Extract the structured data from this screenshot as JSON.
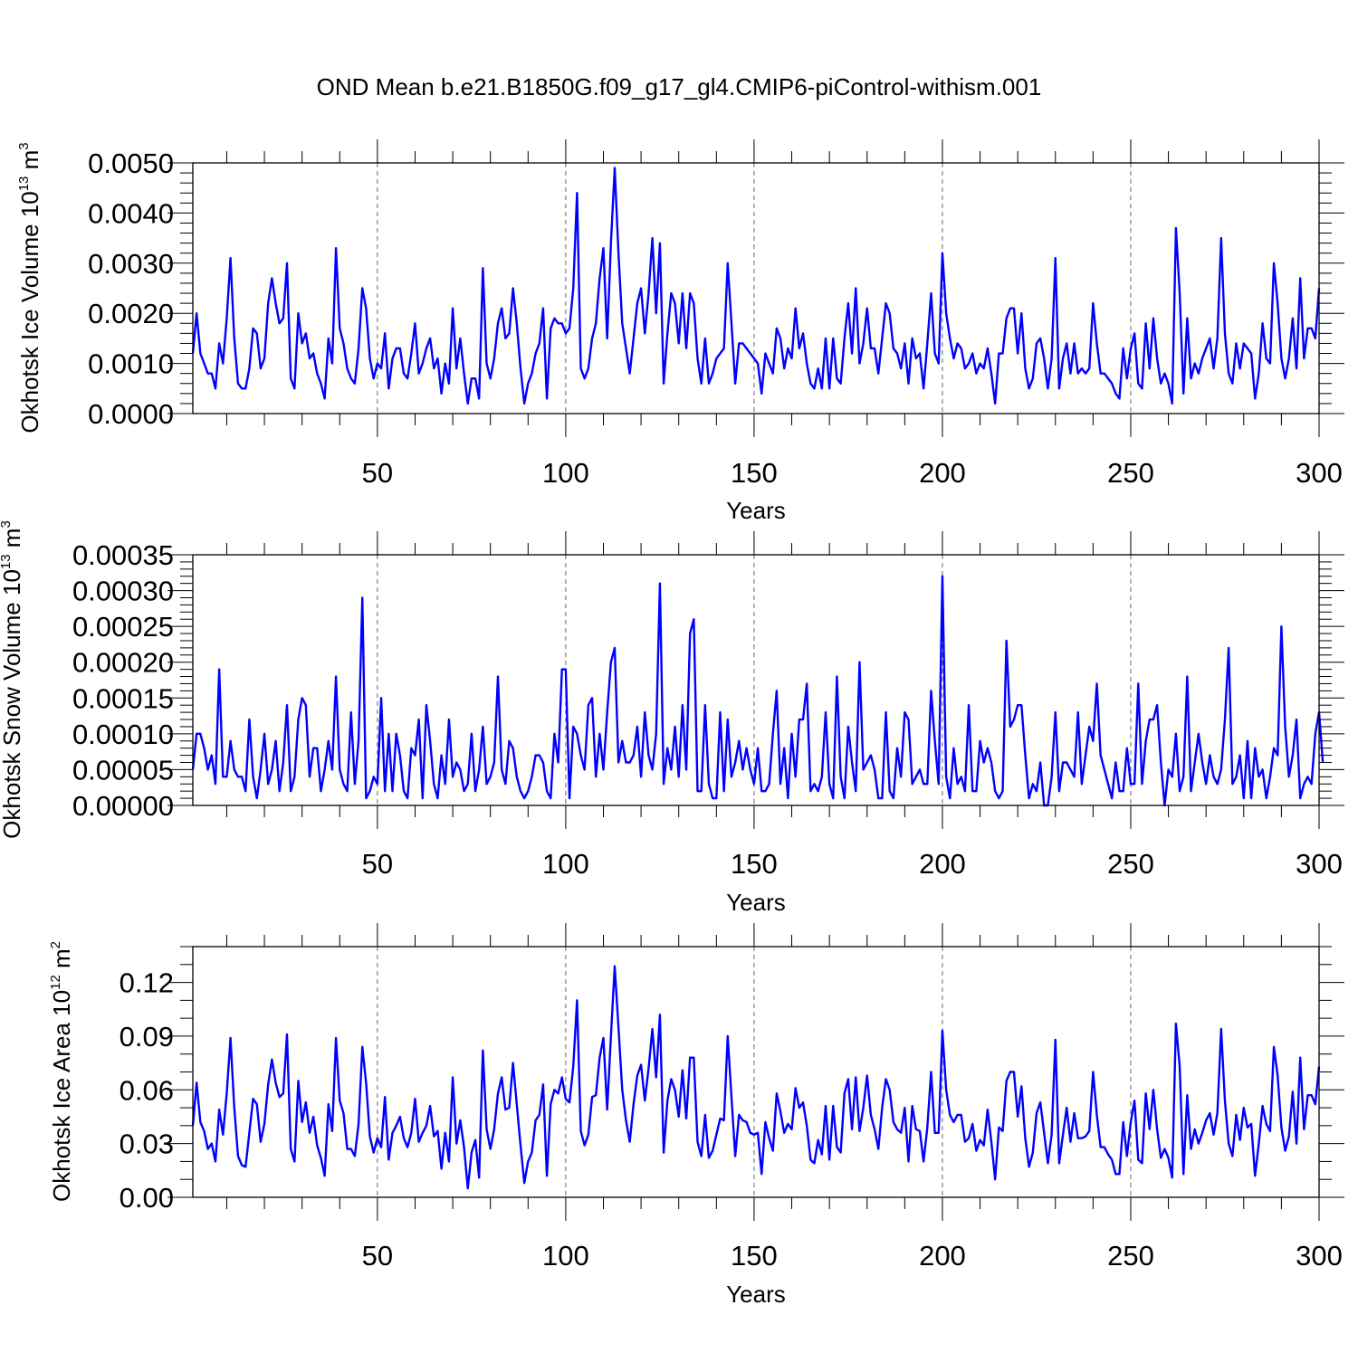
{
  "title": "OND Mean b.e21.B1850G.f09_g17_gl4.CMIP6-piControl-withism.001",
  "colors": {
    "series": "#0000ff",
    "axis": "#000000",
    "grid": "#666666"
  },
  "chart_data": [
    {
      "type": "line",
      "name": "ice-volume",
      "ylabel": "Okhotsk Ice Volume 10",
      "yexp": "13",
      "yunit": " m",
      "yunitexp": "3",
      "xlabel": "Years",
      "xlim": [
        1,
        300
      ],
      "ylim": [
        0,
        0.005
      ],
      "xticks": [
        50,
        100,
        150,
        200,
        250,
        300
      ],
      "xtick_labels": [
        "50",
        "100",
        "150",
        "200",
        "250",
        "300"
      ],
      "yticks": [
        0,
        0.001,
        0.002,
        0.003,
        0.004,
        0.005
      ],
      "ytick_labels": [
        "0.0000",
        "0.0010",
        "0.0020",
        "0.0030",
        "0.0040",
        "0.0050"
      ],
      "yminor": 0.0002,
      "gridlines_x": [
        50,
        100,
        150,
        200,
        250
      ],
      "x_start": 1,
      "values": [
        0.0012,
        0.002,
        0.0012,
        0.001,
        0.0008,
        0.0008,
        0.0005,
        0.0014,
        0.001,
        0.0019,
        0.0031,
        0.0015,
        0.0006,
        0.0005,
        0.0005,
        0.0009,
        0.0017,
        0.0016,
        0.0009,
        0.0011,
        0.0022,
        0.0027,
        0.0022,
        0.0018,
        0.0019,
        0.003,
        0.0007,
        0.0005,
        0.002,
        0.0014,
        0.0016,
        0.0011,
        0.0012,
        0.0008,
        0.0006,
        0.0003,
        0.0015,
        0.001,
        0.0033,
        0.0017,
        0.0014,
        0.0009,
        0.0007,
        0.0006,
        0.0013,
        0.0025,
        0.0021,
        0.0011,
        0.0007,
        0.001,
        0.0009,
        0.0016,
        0.0005,
        0.0011,
        0.0013,
        0.0013,
        0.0008,
        0.0007,
        0.0012,
        0.0018,
        0.0008,
        0.001,
        0.0013,
        0.0015,
        0.0009,
        0.0011,
        0.0004,
        0.001,
        0.0006,
        0.0021,
        0.0009,
        0.0015,
        0.0008,
        0.0002,
        0.0007,
        0.0007,
        0.0003,
        0.0029,
        0.001,
        0.0007,
        0.0011,
        0.0018,
        0.0021,
        0.0015,
        0.0016,
        0.0025,
        0.0018,
        0.0009,
        0.0002,
        0.0006,
        0.0008,
        0.0012,
        0.0014,
        0.0021,
        0.0003,
        0.0017,
        0.0019,
        0.0018,
        0.0018,
        0.0016,
        0.0017,
        0.0025,
        0.0044,
        0.0009,
        0.0007,
        0.0009,
        0.0015,
        0.0018,
        0.0027,
        0.0033,
        0.0015,
        0.0034,
        0.0049,
        0.0032,
        0.0018,
        0.0013,
        0.0008,
        0.0015,
        0.0022,
        0.0025,
        0.0016,
        0.0024,
        0.0035,
        0.002,
        0.0034,
        0.0006,
        0.0016,
        0.0024,
        0.0022,
        0.0014,
        0.0024,
        0.0013,
        0.0024,
        0.0022,
        0.0011,
        0.0006,
        0.0015,
        0.0006,
        0.0008,
        0.0011,
        0.0012,
        0.0013,
        0.003,
        0.0018,
        0.0006,
        0.0014,
        0.0014,
        0.0013,
        0.0012,
        0.0011,
        0.001,
        0.0004,
        0.0012,
        0.001,
        0.0008,
        0.0017,
        0.0015,
        0.0009,
        0.0013,
        0.0011,
        0.0021,
        0.0013,
        0.0016,
        0.001,
        0.0006,
        0.0005,
        0.0009,
        0.0005,
        0.0015,
        0.0005,
        0.0015,
        0.0007,
        0.0006,
        0.0015,
        0.0022,
        0.0012,
        0.0025,
        0.001,
        0.0014,
        0.0021,
        0.0013,
        0.0013,
        0.0008,
        0.0015,
        0.0022,
        0.002,
        0.0013,
        0.0012,
        0.0009,
        0.0014,
        0.0006,
        0.0015,
        0.0011,
        0.0012,
        0.0005,
        0.0014,
        0.0024,
        0.0012,
        0.001,
        0.0032,
        0.002,
        0.0015,
        0.0011,
        0.0014,
        0.0013,
        0.0009,
        0.001,
        0.0012,
        0.0008,
        0.001,
        0.0009,
        0.0013,
        0.0008,
        0.0002,
        0.0012,
        0.0012,
        0.0019,
        0.0021,
        0.0021,
        0.0012,
        0.002,
        0.0009,
        0.0005,
        0.0007,
        0.0014,
        0.0015,
        0.0011,
        0.0005,
        0.0011,
        0.0031,
        0.0005,
        0.0011,
        0.0014,
        0.0008,
        0.0014,
        0.0008,
        0.0009,
        0.0008,
        0.0009,
        0.0022,
        0.0014,
        0.0008,
        0.0008,
        0.0007,
        0.0006,
        0.0004,
        0.0003,
        0.0013,
        0.0007,
        0.0013,
        0.0016,
        0.0006,
        0.0005,
        0.0018,
        0.0009,
        0.0019,
        0.0011,
        0.0006,
        0.0008,
        0.0006,
        0.0002,
        0.0037,
        0.0024,
        0.0004,
        0.0019,
        0.0007,
        0.001,
        0.0008,
        0.0011,
        0.0013,
        0.0015,
        0.0009,
        0.0015,
        0.0035,
        0.0016,
        0.0008,
        0.0006,
        0.0014,
        0.0009,
        0.0014,
        0.0013,
        0.0012,
        0.0003,
        0.0008,
        0.0018,
        0.0011,
        0.001,
        0.003,
        0.0022,
        0.0011,
        0.0007,
        0.0011,
        0.0019,
        0.0009,
        0.0027,
        0.0011,
        0.0017,
        0.0017,
        0.0015,
        0.0025
      ]
    },
    {
      "type": "line",
      "name": "snow-volume",
      "ylabel": "Okhotsk Snow Volume 10",
      "yexp": "13",
      "yunit": " m",
      "yunitexp": "3",
      "xlabel": "Years",
      "xlim": [
        1,
        300
      ],
      "ylim": [
        0,
        0.00035
      ],
      "xticks": [
        50,
        100,
        150,
        200,
        250,
        300
      ],
      "xtick_labels": [
        "50",
        "100",
        "150",
        "200",
        "250",
        "300"
      ],
      "yticks": [
        0,
        5e-05,
        0.0001,
        0.00015,
        0.0002,
        0.00025,
        0.0003,
        0.00035
      ],
      "ytick_labels": [
        "0.00000",
        "0.00005",
        "0.00010",
        "0.00015",
        "0.00020",
        "0.00025",
        "0.00030",
        "0.00035"
      ],
      "yminor": 1e-05,
      "gridlines_x": [
        50,
        100,
        150,
        200,
        250
      ],
      "x_start": 1,
      "values": [
        5e-05,
        0.0001,
        0.0001,
        8e-05,
        5e-05,
        7e-05,
        3e-05,
        0.00019,
        4e-05,
        4e-05,
        9e-05,
        5e-05,
        4e-05,
        4e-05,
        2e-05,
        0.00012,
        4e-05,
        1e-05,
        5e-05,
        0.0001,
        3e-05,
        5e-05,
        9e-05,
        2e-05,
        6e-05,
        0.00014,
        2e-05,
        4e-05,
        0.00012,
        0.00015,
        0.00014,
        4e-05,
        8e-05,
        8e-05,
        2e-05,
        5e-05,
        9e-05,
        5e-05,
        0.00018,
        5e-05,
        3e-05,
        2e-05,
        0.00013,
        3e-05,
        9e-05,
        0.00029,
        1e-05,
        2e-05,
        4e-05,
        3e-05,
        0.00015,
        2e-05,
        0.0001,
        2e-05,
        0.0001,
        7e-05,
        2e-05,
        1e-05,
        8e-05,
        7e-05,
        0.00012,
        1e-05,
        0.00014,
        9e-05,
        3e-05,
        1e-05,
        7e-05,
        3e-05,
        0.00012,
        4e-05,
        6e-05,
        5e-05,
        2e-05,
        3e-05,
        0.0001,
        2e-05,
        5e-05,
        0.00011,
        3e-05,
        4e-05,
        6e-05,
        0.00018,
        5e-05,
        3e-05,
        9e-05,
        8e-05,
        4e-05,
        2e-05,
        1e-05,
        2e-05,
        4e-05,
        7e-05,
        7e-05,
        6e-05,
        2e-05,
        1e-05,
        0.0001,
        6e-05,
        0.00019,
        0.00019,
        1e-05,
        0.00011,
        0.0001,
        7e-05,
        5e-05,
        0.00014,
        0.00015,
        4e-05,
        0.0001,
        5e-05,
        0.00013,
        0.0002,
        0.00022,
        6e-05,
        9e-05,
        6e-05,
        6e-05,
        7e-05,
        0.00011,
        4e-05,
        0.00013,
        7e-05,
        5e-05,
        0.0001,
        0.00031,
        3e-05,
        8e-05,
        5e-05,
        0.00011,
        4e-05,
        0.00014,
        5e-05,
        0.00024,
        0.00026,
        2e-05,
        2e-05,
        0.00014,
        3e-05,
        1e-05,
        1e-05,
        0.00013,
        2e-05,
        0.00012,
        4e-05,
        6e-05,
        9e-05,
        5e-05,
        8e-05,
        5e-05,
        3e-05,
        8e-05,
        2e-05,
        2e-05,
        3e-05,
        0.0001,
        0.00016,
        3e-05,
        8e-05,
        1e-05,
        0.0001,
        4e-05,
        0.00012,
        0.00012,
        0.00017,
        2e-05,
        3e-05,
        2e-05,
        4e-05,
        0.00013,
        3e-05,
        1e-05,
        0.00018,
        4e-05,
        1e-05,
        0.00011,
        6e-05,
        2e-05,
        0.0002,
        5e-05,
        6e-05,
        7e-05,
        5e-05,
        1e-05,
        1e-05,
        0.00013,
        2e-05,
        1e-05,
        8e-05,
        4e-05,
        0.00013,
        0.00012,
        3e-05,
        4e-05,
        5e-05,
        3e-05,
        3e-05,
        0.00016,
        9e-05,
        3e-05,
        0.00032,
        4e-05,
        1e-05,
        8e-05,
        3e-05,
        4e-05,
        2e-05,
        0.00014,
        2e-05,
        2e-05,
        9e-05,
        6e-05,
        8e-05,
        6e-05,
        2e-05,
        1e-05,
        2e-05,
        0.00023,
        0.00011,
        0.00012,
        0.00014,
        0.00014,
        7e-05,
        1e-05,
        3e-05,
        2e-05,
        6e-05,
        0.0,
        0.0,
        4e-05,
        0.00013,
        2e-05,
        6e-05,
        6e-05,
        5e-05,
        4e-05,
        0.00013,
        3e-05,
        7e-05,
        0.00011,
        9e-05,
        0.00017,
        7e-05,
        5e-05,
        3e-05,
        1e-05,
        6e-05,
        2e-05,
        2e-05,
        8e-05,
        3e-05,
        3e-05,
        0.00017,
        3e-05,
        9e-05,
        0.00012,
        0.00012,
        0.00014,
        6e-05,
        0.0,
        5e-05,
        4e-05,
        0.0001,
        2e-05,
        4e-05,
        0.00018,
        2e-05,
        6e-05,
        0.0001,
        6e-05,
        3e-05,
        7e-05,
        4e-05,
        3e-05,
        5e-05,
        0.00012,
        0.00022,
        3e-05,
        4e-05,
        7e-05,
        1e-05,
        9e-05,
        1e-05,
        8e-05,
        4e-05,
        5e-05,
        1e-05,
        4e-05,
        8e-05,
        7e-05,
        0.00025,
        0.00011,
        4e-05,
        7e-05,
        0.00012,
        1e-05,
        3e-05,
        4e-05,
        3e-05,
        0.0001,
        0.00013,
        6e-05
      ]
    },
    {
      "type": "line",
      "name": "ice-area",
      "ylabel": "Okhotsk Ice Area 10",
      "yexp": "12",
      "yunit": " m",
      "yunitexp": "2",
      "xlabel": "Years",
      "xlim": [
        1,
        300
      ],
      "ylim": [
        0,
        0.14
      ],
      "xticks": [
        50,
        100,
        150,
        200,
        250,
        300
      ],
      "xtick_labels": [
        "50",
        "100",
        "150",
        "200",
        "250",
        "300"
      ],
      "yticks": [
        0,
        0.03,
        0.06,
        0.09,
        0.12
      ],
      "ytick_labels": [
        "0.00",
        "0.03",
        "0.06",
        "0.09",
        "0.12"
      ],
      "yminor": 0.01,
      "gridlines_x": [
        50,
        100,
        150,
        200,
        250
      ],
      "x_start": 1,
      "values": [
        0.04,
        0.064,
        0.042,
        0.037,
        0.027,
        0.03,
        0.02,
        0.049,
        0.035,
        0.058,
        0.089,
        0.05,
        0.023,
        0.018,
        0.017,
        0.036,
        0.055,
        0.052,
        0.031,
        0.041,
        0.063,
        0.077,
        0.064,
        0.056,
        0.058,
        0.091,
        0.027,
        0.02,
        0.065,
        0.042,
        0.053,
        0.036,
        0.045,
        0.029,
        0.022,
        0.012,
        0.052,
        0.037,
        0.089,
        0.054,
        0.047,
        0.027,
        0.027,
        0.023,
        0.041,
        0.084,
        0.064,
        0.034,
        0.025,
        0.033,
        0.028,
        0.056,
        0.021,
        0.036,
        0.04,
        0.045,
        0.033,
        0.028,
        0.036,
        0.055,
        0.031,
        0.036,
        0.04,
        0.051,
        0.034,
        0.037,
        0.016,
        0.036,
        0.02,
        0.067,
        0.03,
        0.043,
        0.028,
        0.005,
        0.025,
        0.032,
        0.011,
        0.082,
        0.038,
        0.027,
        0.038,
        0.058,
        0.067,
        0.049,
        0.05,
        0.075,
        0.052,
        0.029,
        0.008,
        0.02,
        0.025,
        0.043,
        0.046,
        0.063,
        0.012,
        0.052,
        0.06,
        0.058,
        0.067,
        0.055,
        0.053,
        0.073,
        0.11,
        0.037,
        0.029,
        0.035,
        0.056,
        0.057,
        0.078,
        0.089,
        0.049,
        0.09,
        0.129,
        0.095,
        0.06,
        0.043,
        0.031,
        0.052,
        0.068,
        0.074,
        0.054,
        0.072,
        0.094,
        0.067,
        0.102,
        0.025,
        0.054,
        0.066,
        0.06,
        0.045,
        0.071,
        0.044,
        0.078,
        0.078,
        0.031,
        0.023,
        0.046,
        0.022,
        0.026,
        0.035,
        0.044,
        0.043,
        0.09,
        0.056,
        0.023,
        0.046,
        0.043,
        0.042,
        0.036,
        0.035,
        0.036,
        0.013,
        0.042,
        0.033,
        0.026,
        0.058,
        0.048,
        0.036,
        0.041,
        0.038,
        0.061,
        0.05,
        0.053,
        0.04,
        0.021,
        0.019,
        0.032,
        0.024,
        0.051,
        0.021,
        0.051,
        0.028,
        0.025,
        0.058,
        0.066,
        0.038,
        0.067,
        0.037,
        0.05,
        0.068,
        0.046,
        0.038,
        0.027,
        0.05,
        0.066,
        0.06,
        0.042,
        0.038,
        0.036,
        0.05,
        0.02,
        0.051,
        0.038,
        0.037,
        0.02,
        0.039,
        0.07,
        0.036,
        0.036,
        0.093,
        0.06,
        0.046,
        0.042,
        0.046,
        0.046,
        0.031,
        0.033,
        0.041,
        0.026,
        0.032,
        0.029,
        0.049,
        0.031,
        0.01,
        0.039,
        0.037,
        0.065,
        0.07,
        0.07,
        0.045,
        0.062,
        0.033,
        0.017,
        0.025,
        0.047,
        0.053,
        0.036,
        0.019,
        0.035,
        0.088,
        0.019,
        0.035,
        0.05,
        0.031,
        0.047,
        0.033,
        0.033,
        0.034,
        0.037,
        0.07,
        0.046,
        0.028,
        0.028,
        0.024,
        0.021,
        0.013,
        0.013,
        0.042,
        0.023,
        0.042,
        0.054,
        0.021,
        0.019,
        0.058,
        0.038,
        0.06,
        0.038,
        0.022,
        0.027,
        0.022,
        0.011,
        0.097,
        0.073,
        0.013,
        0.057,
        0.027,
        0.038,
        0.03,
        0.036,
        0.043,
        0.047,
        0.035,
        0.047,
        0.094,
        0.054,
        0.03,
        0.023,
        0.046,
        0.032,
        0.05,
        0.039,
        0.041,
        0.012,
        0.03,
        0.051,
        0.041,
        0.037,
        0.084,
        0.068,
        0.039,
        0.026,
        0.034,
        0.059,
        0.03,
        0.078,
        0.038,
        0.057,
        0.057,
        0.052,
        0.073
      ]
    }
  ]
}
